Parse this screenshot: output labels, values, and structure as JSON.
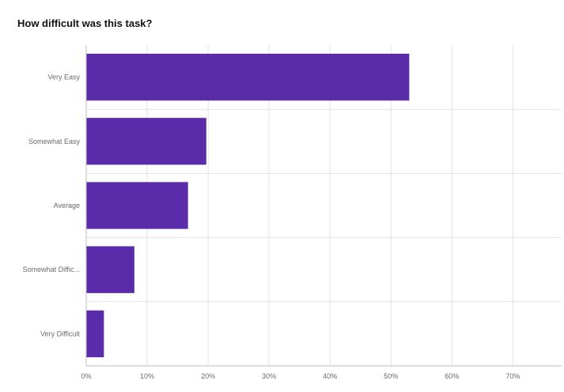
{
  "chart_data": {
    "type": "bar",
    "orientation": "horizontal",
    "title": "How difficult was this task?",
    "categories": [
      "Very Easy",
      "Somewhat Easy",
      "Average",
      "Somewhat Diffic...",
      "Very Difficult"
    ],
    "values": [
      53.0,
      19.7,
      16.7,
      7.9,
      2.9
    ],
    "xlim": [
      0,
      78
    ],
    "xticks": [
      0,
      10,
      20,
      30,
      40,
      50,
      60,
      70
    ],
    "xtick_labels": [
      "0%",
      "10%",
      "20%",
      "30%",
      "40%",
      "50%",
      "60%",
      "70%"
    ],
    "grid": true,
    "bar_color": "#5b2ca9",
    "gridline_color": "#e3e3e3",
    "xlabel": "",
    "ylabel": ""
  }
}
